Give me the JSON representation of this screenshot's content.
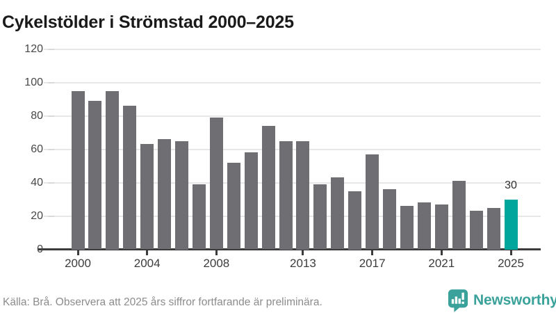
{
  "title": "Cykelstölder i Strömstad 2000–2025",
  "footer": {
    "source_note": "Källa: Brå. Observera att 2025 års siffror fortfarande är preliminära.",
    "brand": "Newsworthy"
  },
  "colors": {
    "bar_default": "#6e6e73",
    "bar_highlight": "#00a59c",
    "brand_teal": "#3aa29a",
    "grid": "#e7e7e7",
    "axis_line": "#3b3b3b",
    "title_text": "#1a1a1a",
    "axis_text": "#454545",
    "footer_text": "#8c8c8c",
    "annotation_text": "#2e2e2e"
  },
  "icons": {
    "logo": "newsworthy-bar-chart-bubble-icon"
  },
  "chart_data": {
    "type": "bar",
    "title": "Cykelstölder i Strömstad 2000–2025",
    "x": [
      2000,
      2001,
      2002,
      2003,
      2004,
      2005,
      2006,
      2007,
      2008,
      2009,
      2010,
      2011,
      2012,
      2013,
      2014,
      2015,
      2016,
      2017,
      2018,
      2019,
      2020,
      2021,
      2022,
      2023,
      2024,
      2025
    ],
    "values": [
      95,
      89,
      95,
      86,
      63,
      66,
      65,
      39,
      79,
      52,
      58,
      74,
      65,
      65,
      39,
      43,
      35,
      57,
      36,
      26,
      28,
      27,
      41,
      23,
      25,
      30
    ],
    "highlight_year": 2025,
    "annotations": [
      {
        "year": 2025,
        "text": "30"
      }
    ],
    "yticks": [
      0,
      20,
      40,
      60,
      80,
      100,
      120
    ],
    "xticks": [
      2000,
      2004,
      2008,
      2013,
      2017,
      2021,
      2025
    ],
    "ylim": [
      0,
      120
    ],
    "xlabel": "",
    "ylabel": "",
    "grid": "horizontal",
    "legend": "none"
  }
}
